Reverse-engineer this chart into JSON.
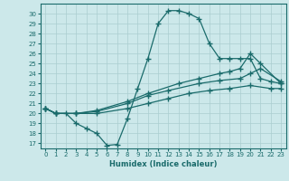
{
  "xlabel": "Humidex (Indice chaleur)",
  "xlim": [
    -0.5,
    23.5
  ],
  "ylim": [
    16.5,
    31.0
  ],
  "yticks": [
    17,
    18,
    19,
    20,
    21,
    22,
    23,
    24,
    25,
    26,
    27,
    28,
    29,
    30
  ],
  "xticks": [
    0,
    1,
    2,
    3,
    4,
    5,
    6,
    7,
    8,
    9,
    10,
    11,
    12,
    13,
    14,
    15,
    16,
    17,
    18,
    19,
    20,
    21,
    22,
    23
  ],
  "bg_color": "#cce8ea",
  "grid_color": "#aacdd0",
  "line_color": "#1a6b6b",
  "line1_x": [
    0,
    1,
    2,
    3,
    4,
    5,
    6,
    7,
    8,
    9,
    10,
    11,
    12,
    13,
    14,
    15,
    16,
    17,
    18,
    19,
    20,
    21,
    22,
    23
  ],
  "line1_y": [
    20.5,
    20.0,
    20.0,
    19.0,
    18.5,
    18.0,
    16.8,
    16.9,
    19.5,
    22.5,
    25.5,
    29.0,
    30.3,
    30.3,
    30.0,
    29.5,
    27.0,
    25.5,
    25.5,
    25.5,
    25.5,
    23.5,
    23.2,
    23.0
  ],
  "line2_x": [
    0,
    1,
    3,
    5,
    8,
    10,
    13,
    15,
    17,
    18,
    19,
    20,
    21,
    23
  ],
  "line2_y": [
    20.5,
    20.0,
    20.0,
    20.3,
    21.2,
    22.0,
    23.0,
    23.5,
    24.0,
    24.2,
    24.5,
    26.0,
    25.0,
    23.0
  ],
  "line3_x": [
    0,
    1,
    3,
    5,
    8,
    10,
    12,
    15,
    17,
    19,
    20,
    21,
    23
  ],
  "line3_y": [
    20.5,
    20.0,
    20.0,
    20.2,
    21.0,
    21.8,
    22.3,
    23.0,
    23.3,
    23.5,
    24.0,
    24.5,
    23.2
  ],
  "line4_x": [
    0,
    1,
    3,
    5,
    8,
    10,
    12,
    14,
    16,
    18,
    20,
    22,
    23
  ],
  "line4_y": [
    20.5,
    20.0,
    20.0,
    20.0,
    20.5,
    21.0,
    21.5,
    22.0,
    22.3,
    22.5,
    22.8,
    22.5,
    22.5
  ]
}
